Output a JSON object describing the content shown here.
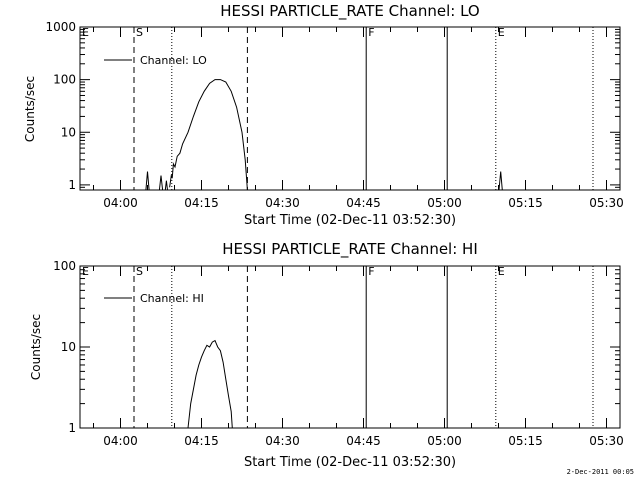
{
  "timestamp": "2-Dec-2011 00:05",
  "chart_data": [
    {
      "type": "line",
      "title": "HESSI PARTICLE_RATE Channel: LO",
      "xlabel": "Start Time (02-Dec-11 03:52:30)",
      "ylabel": "Counts/sec",
      "x_unit": "minutes after 03:52:30",
      "xlim": [
        0,
        100
      ],
      "ylim": [
        0.8,
        1000
      ],
      "yscale": "log",
      "x_ticks": [
        "04:00",
        "04:15",
        "04:30",
        "04:45",
        "05:00",
        "05:15",
        "05:30"
      ],
      "y_ticks": [
        "1",
        "10",
        "100",
        "1000"
      ],
      "grid": false,
      "legend": {
        "label": "Channel: LO",
        "placement": "top-left"
      },
      "markers": [
        {
          "x": -2,
          "label": "E",
          "style": "dotted"
        },
        {
          "x": 10,
          "label": "S",
          "style": "dashed"
        },
        {
          "x": 17,
          "label": "",
          "style": "dotted"
        },
        {
          "x": 31,
          "label": "",
          "style": "dashed"
        },
        {
          "x": 53,
          "label": "F",
          "style": "solid"
        },
        {
          "x": 68,
          "label": "",
          "style": "solid"
        },
        {
          "x": 77,
          "label": "E",
          "style": "dotted"
        },
        {
          "x": 95,
          "label": "",
          "style": "dotted"
        }
      ],
      "series": [
        {
          "name": "Channel: LO",
          "segments": [
            [
              [
                12.2,
                0.8
              ],
              [
                12.5,
                1.8
              ],
              [
                12.8,
                0.8
              ]
            ],
            [
              [
                14.7,
                0.8
              ],
              [
                15.0,
                1.5
              ],
              [
                15.3,
                0.8
              ]
            ],
            [
              [
                15.8,
                0.8
              ],
              [
                16.0,
                1.2
              ],
              [
                16.2,
                0.8
              ]
            ],
            [
              [
                16.6,
                0.9
              ],
              [
                16.9,
                1.5
              ],
              [
                17.1,
                1.4
              ],
              [
                17.3,
                2.5
              ],
              [
                17.6,
                2.2
              ],
              [
                18.0,
                3.5
              ],
              [
                18.5,
                4.0
              ],
              [
                19.0,
                6.0
              ],
              [
                20.0,
                10.0
              ],
              [
                21.0,
                20.0
              ],
              [
                22.0,
                38.0
              ],
              [
                23.0,
                60.0
              ],
              [
                24.0,
                85.0
              ],
              [
                25.0,
                100.0
              ],
              [
                26.0,
                100.0
              ],
              [
                27.0,
                90.0
              ],
              [
                28.0,
                60.0
              ],
              [
                29.0,
                30.0
              ],
              [
                30.0,
                10.0
              ],
              [
                30.6,
                3.0
              ],
              [
                31.0,
                0.8
              ]
            ],
            [
              [
                77.6,
                0.8
              ],
              [
                77.9,
                1.8
              ],
              [
                78.2,
                0.8
              ]
            ]
          ]
        }
      ]
    },
    {
      "type": "line",
      "title": "HESSI PARTICLE_RATE Channel: HI",
      "xlabel": "Start Time (02-Dec-11 03:52:30)",
      "ylabel": "Counts/sec",
      "x_unit": "minutes after 03:52:30",
      "xlim": [
        0,
        100
      ],
      "ylim": [
        1,
        100
      ],
      "yscale": "log",
      "x_ticks": [
        "04:00",
        "04:15",
        "04:30",
        "04:45",
        "05:00",
        "05:15",
        "05:30"
      ],
      "y_ticks": [
        "1",
        "10",
        "100"
      ],
      "grid": false,
      "legend": {
        "label": "Channel: HI",
        "placement": "top-left"
      },
      "markers": [
        {
          "x": -2,
          "label": "E",
          "style": "dotted"
        },
        {
          "x": 10,
          "label": "S",
          "style": "dashed"
        },
        {
          "x": 17,
          "label": "",
          "style": "dotted"
        },
        {
          "x": 31,
          "label": "",
          "style": "dashed"
        },
        {
          "x": 53,
          "label": "F",
          "style": "solid"
        },
        {
          "x": 68,
          "label": "",
          "style": "solid"
        },
        {
          "x": 77,
          "label": "E",
          "style": "dotted"
        },
        {
          "x": 95,
          "label": "",
          "style": "dotted"
        }
      ],
      "series": [
        {
          "name": "Channel: HI",
          "segments": [
            [
              [
                20.0,
                1.0
              ],
              [
                20.5,
                2.0
              ],
              [
                21.0,
                3.0
              ],
              [
                21.5,
                4.5
              ],
              [
                22.0,
                6.0
              ],
              [
                22.5,
                7.5
              ],
              [
                23.0,
                9.0
              ],
              [
                23.5,
                10.5
              ],
              [
                24.0,
                10.0
              ],
              [
                24.5,
                11.5
              ],
              [
                25.0,
                12.0
              ],
              [
                25.5,
                10.0
              ],
              [
                26.0,
                9.0
              ],
              [
                26.5,
                6.5
              ],
              [
                27.0,
                4.0
              ],
              [
                27.5,
                2.5
              ],
              [
                28.0,
                1.6
              ],
              [
                28.2,
                1.0
              ]
            ]
          ]
        }
      ]
    }
  ]
}
